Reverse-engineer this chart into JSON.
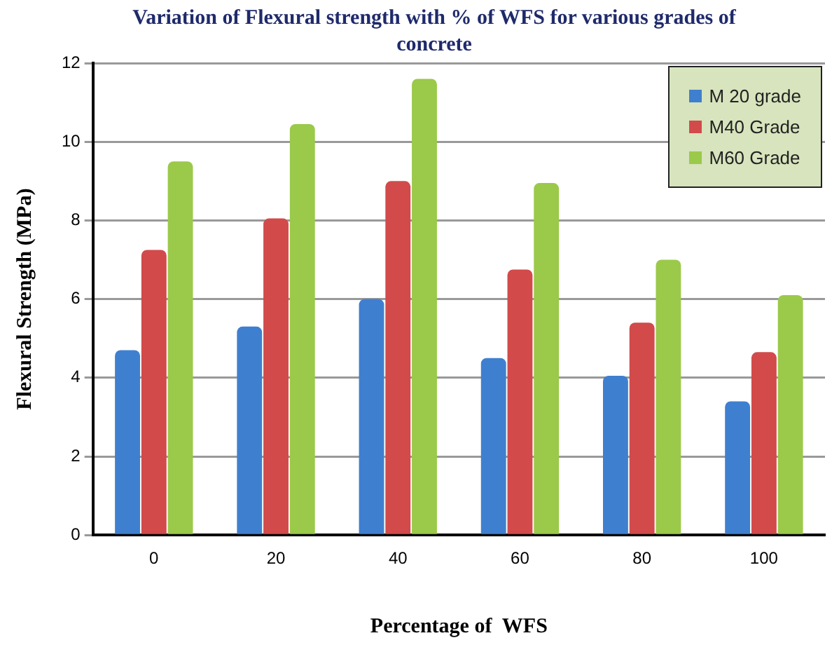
{
  "chart_data": {
    "type": "bar",
    "title": "Variation of Flexural strength with % of WFS for various grades of concrete",
    "xlabel": "Percentage of  WFS",
    "ylabel": "Flexural Strength (MPa)",
    "categories": [
      "0",
      "20",
      "40",
      "60",
      "80",
      "100"
    ],
    "series": [
      {
        "name": "M 20 grade",
        "color": "#3f7fcf",
        "values": [
          4.7,
          5.3,
          6.0,
          4.5,
          4.05,
          3.4
        ]
      },
      {
        "name": "M40 Grade",
        "color": "#d24a4a",
        "values": [
          7.25,
          8.05,
          9.0,
          6.75,
          5.4,
          4.65
        ]
      },
      {
        "name": "M60 Grade",
        "color": "#9bc94a",
        "values": [
          9.5,
          10.45,
          11.6,
          8.95,
          7.0,
          6.1
        ]
      }
    ],
    "ylim": [
      0,
      12
    ],
    "yticks": [
      0,
      2,
      4,
      6,
      8,
      10,
      12
    ],
    "grid": "y",
    "legend": "top right"
  }
}
